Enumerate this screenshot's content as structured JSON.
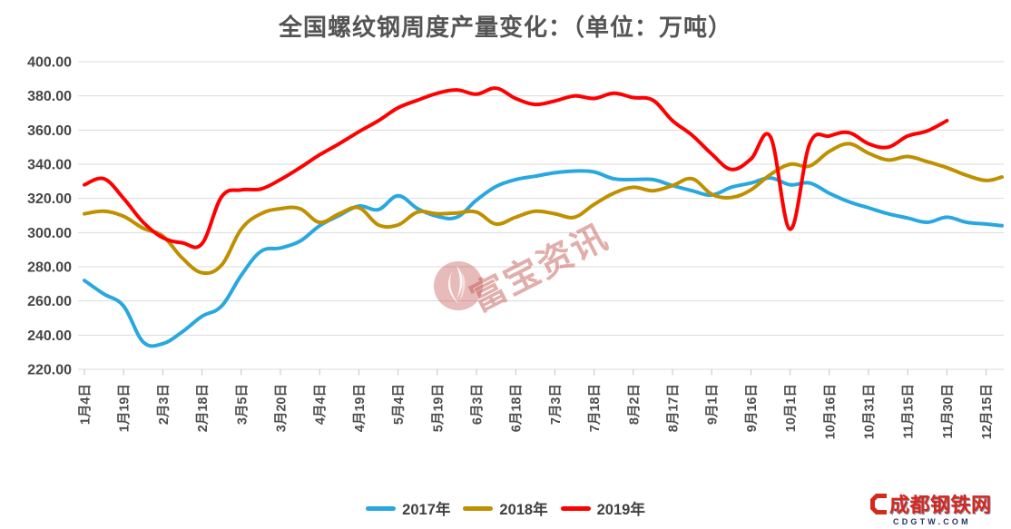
{
  "title": "全国螺纹钢周度产量变化：（单位：万吨）",
  "watermarks": {
    "center_text": "富宝资讯",
    "brand_line1": "成都钢铁网",
    "brand_line2": "CDGTW.COM"
  },
  "colors": {
    "grid": "#dbdbdb",
    "tick": "#c4c4c4",
    "axis_text": "#4d4d4d",
    "watermark": "#c1564f"
  },
  "chart_data": {
    "type": "line",
    "title": "全国螺纹钢周度产量变化",
    "unit": "万吨",
    "ylim": [
      220,
      400
    ],
    "y_step": 20,
    "grid": true,
    "legend_position": "bottom",
    "y_tick_labels": [
      "400.00",
      "380.00",
      "360.00",
      "340.00",
      "320.00",
      "300.00",
      "280.00",
      "260.00",
      "240.00",
      "220.00"
    ],
    "x_tick_labels": [
      "1月4日",
      "1月19日",
      "2月3日",
      "2月18日",
      "3月5日",
      "3月20日",
      "4月4日",
      "4月19日",
      "5月4日",
      "5月19日",
      "6月3日",
      "6月18日",
      "7月3日",
      "7月18日",
      "8月2日",
      "8月17日",
      "9月1日",
      "9月16日",
      "10月1日",
      "10月16日",
      "10月31日",
      "11月15日",
      "11月30日",
      "12月15日"
    ],
    "samples_per_tick_interval": 2,
    "series": [
      {
        "name": "2017年",
        "color": "#29A8DF",
        "values": [
          272,
          264,
          257,
          236,
          235,
          242,
          251,
          257,
          275,
          289,
          291,
          295,
          304,
          310,
          315.5,
          313.5,
          321.5,
          314,
          309.5,
          309,
          319,
          327,
          331,
          333,
          335,
          336,
          335.5,
          331.5,
          331,
          331,
          327.5,
          324.5,
          322,
          326.5,
          329,
          332,
          328,
          329,
          323,
          318,
          314.5,
          311,
          308.5,
          306,
          309,
          306,
          305,
          304
        ]
      },
      {
        "name": "2018年",
        "color": "#BF9000",
        "values": [
          311,
          312.5,
          309.5,
          302.5,
          298,
          285,
          276.5,
          281,
          302,
          311,
          314,
          314,
          306,
          311,
          314.5,
          304.5,
          304.5,
          312,
          311,
          311.5,
          312,
          305,
          309,
          312.5,
          311,
          309,
          316.5,
          323,
          326.5,
          324.5,
          327.5,
          331.5,
          322.5,
          320.5,
          325,
          334,
          340,
          339,
          347.5,
          352,
          346.5,
          342.5,
          344.5,
          341.5,
          338,
          333.5,
          330.5,
          332.5
        ]
      },
      {
        "name": "2019年",
        "color": "#FF0000",
        "values": [
          328,
          331.5,
          320,
          306,
          297,
          294,
          293.5,
          321,
          325,
          325.5,
          331,
          338,
          345.5,
          352,
          359,
          365.5,
          373,
          377.5,
          381.5,
          383.5,
          381,
          384.5,
          378.5,
          375,
          377,
          380,
          378.5,
          381.5,
          379,
          377.5,
          365.5,
          357,
          346,
          337,
          343,
          356,
          302,
          352,
          356.5,
          358.5,
          352,
          350,
          356.5,
          359.5,
          365.5
        ]
      }
    ]
  }
}
